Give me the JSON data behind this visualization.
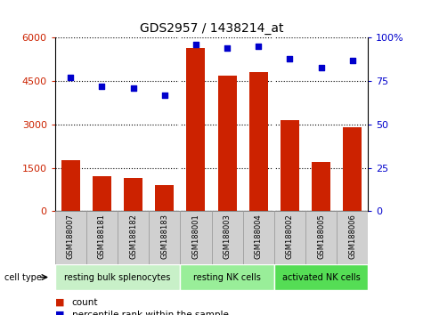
{
  "title": "GDS2957 / 1438214_at",
  "samples": [
    "GSM188007",
    "GSM188181",
    "GSM188182",
    "GSM188183",
    "GSM188001",
    "GSM188003",
    "GSM188004",
    "GSM188002",
    "GSM188005",
    "GSM188006"
  ],
  "counts": [
    1750,
    1200,
    1150,
    900,
    5650,
    4700,
    4800,
    3150,
    1700,
    2900
  ],
  "percentiles": [
    77,
    72,
    71,
    67,
    96,
    94,
    95,
    88,
    83,
    87
  ],
  "cell_types": [
    {
      "label": "resting bulk splenocytes",
      "start": 0,
      "end": 4,
      "color": "#c8f0c8"
    },
    {
      "label": "resting NK cells",
      "start": 4,
      "end": 7,
      "color": "#99ee99"
    },
    {
      "label": "activated NK cells",
      "start": 7,
      "end": 10,
      "color": "#55dd55"
    }
  ],
  "bar_color": "#cc2200",
  "dot_color": "#0000cc",
  "left_ylim": [
    0,
    6000
  ],
  "left_yticks": [
    0,
    1500,
    3000,
    4500,
    6000
  ],
  "right_ylim": [
    0,
    100
  ],
  "right_yticks": [
    0,
    25,
    50,
    75,
    100
  ],
  "plot_bg_color": "#ffffff",
  "tick_bg_color": "#d0d0d0",
  "cell_type_label": "cell type",
  "legend_count": "count",
  "legend_percentile": "percentile rank within the sample"
}
